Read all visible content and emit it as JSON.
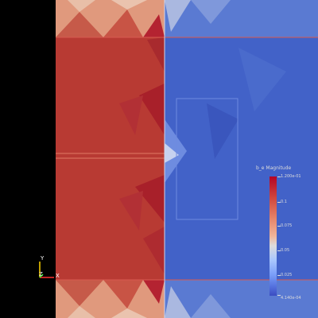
{
  "colorbar": {
    "title": "b_e Magnitude",
    "max_label": "1.200e-01",
    "min_label": "4.140e-04",
    "tick_labels": [
      "0.1",
      "0.075",
      "0.05",
      "0.025"
    ],
    "colormap": [
      "#3b4cc0",
      "#dddcdc",
      "#b40426"
    ]
  },
  "axes": {
    "x_label": "X",
    "y_label": "Y",
    "z_label": "Z"
  },
  "colors": {
    "background": "#000000",
    "high_region": "#b83a33",
    "low_region": "#4262c8",
    "mesh_edge": "#d85a50"
  }
}
